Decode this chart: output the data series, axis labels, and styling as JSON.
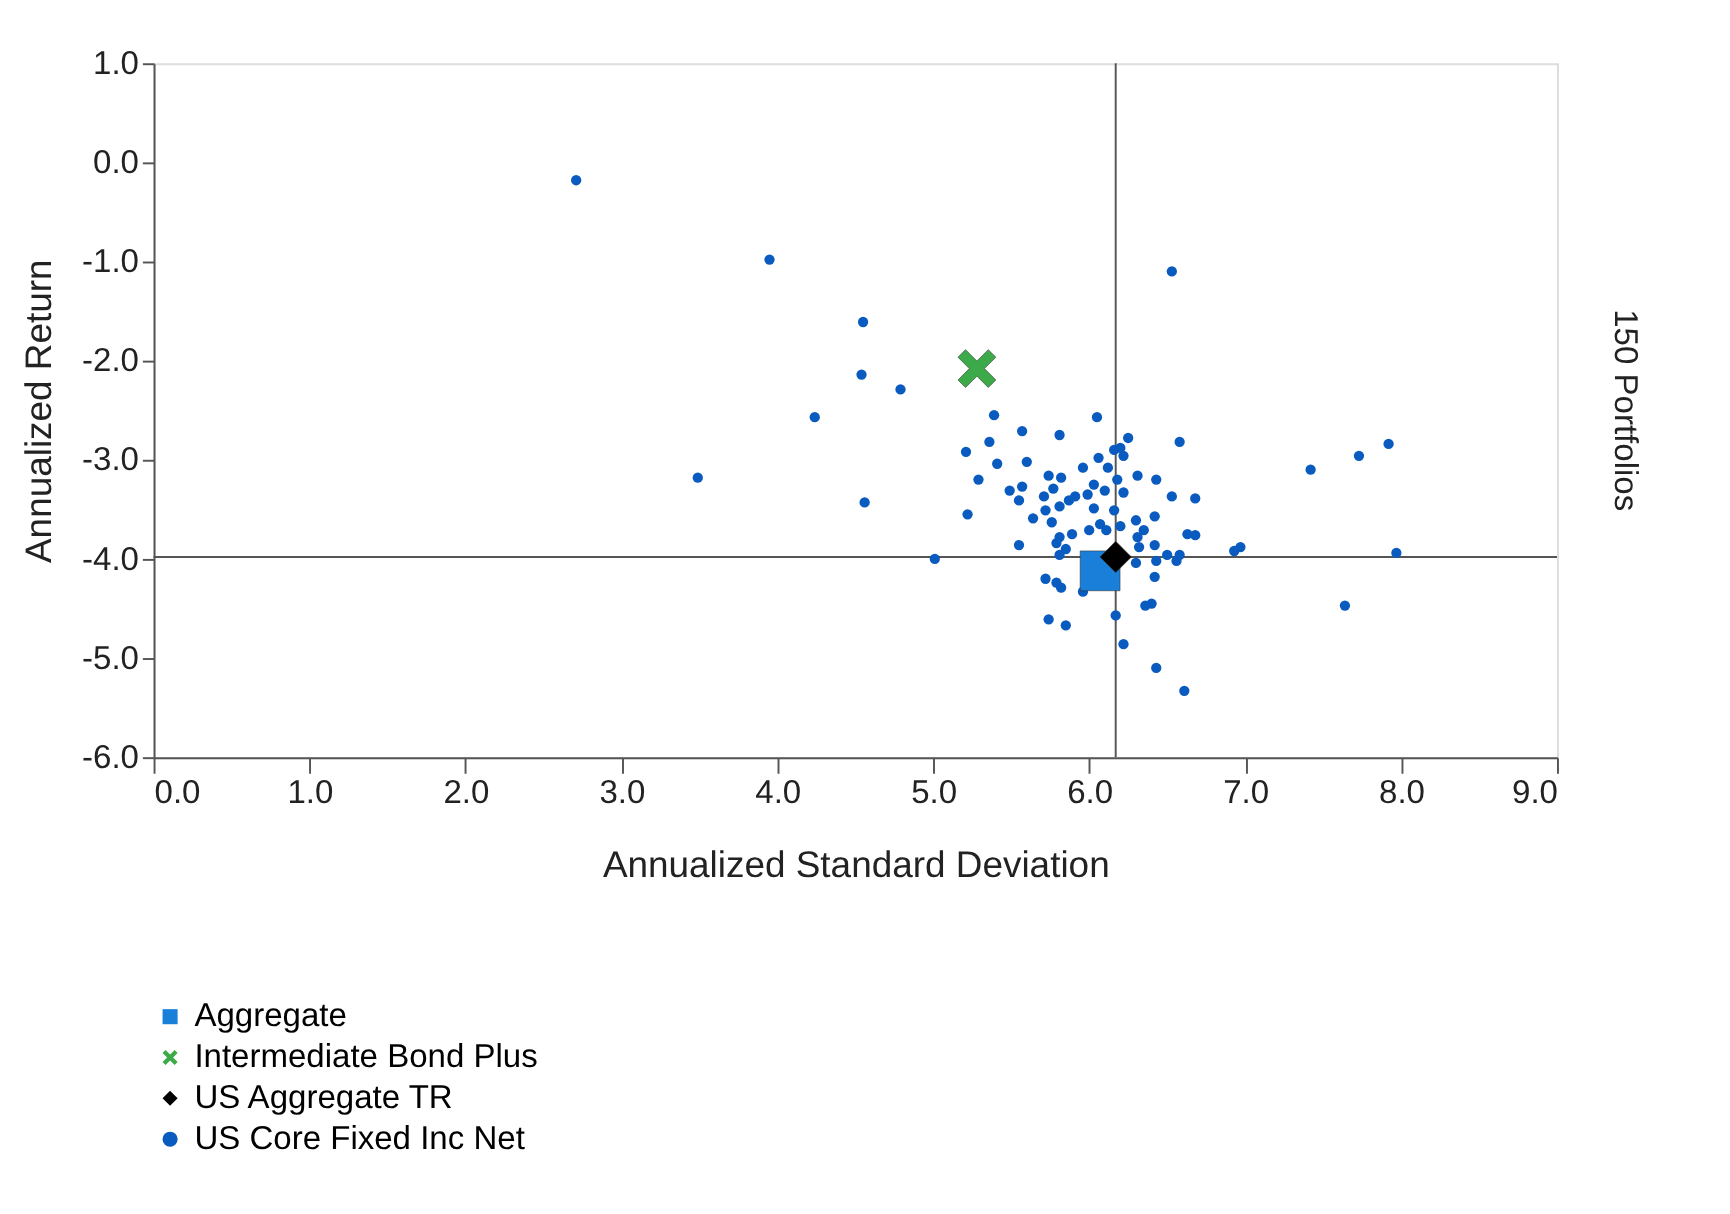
{
  "chart_data": {
    "type": "scatter",
    "xlabel": "Annualized Standard Deviation",
    "ylabel": "Annualized Return",
    "annotations": [
      "150 Portfolios"
    ],
    "xlim": [
      0,
      9
    ],
    "ylim": [
      -6,
      1
    ],
    "xticks": [
      {
        "value": 0,
        "label": "0.0"
      },
      {
        "value": 1,
        "label": "1.0"
      },
      {
        "value": 2,
        "label": "2.0"
      },
      {
        "value": 3,
        "label": "3.0"
      },
      {
        "value": 4,
        "label": "4.0"
      },
      {
        "value": 5,
        "label": "5.0"
      },
      {
        "value": 6,
        "label": "6.0"
      },
      {
        "value": 7,
        "label": "7.0"
      },
      {
        "value": 8,
        "label": "8.0"
      },
      {
        "value": 9,
        "label": "9.0"
      }
    ],
    "yticks": [
      {
        "value": -6,
        "label": "-6.0"
      },
      {
        "value": -5,
        "label": "-5.0"
      },
      {
        "value": -4,
        "label": "-4.0"
      },
      {
        "value": -3,
        "label": "-3.0"
      },
      {
        "value": -2,
        "label": "-2.0"
      },
      {
        "value": -1,
        "label": "-1.0"
      },
      {
        "value": 0,
        "label": "0.0"
      },
      {
        "value": 1,
        "label": "1.0"
      }
    ],
    "grid": false,
    "legend": "bottom",
    "ref_lines": [
      {
        "axis": "x",
        "value": 6.17,
        "color": "#555555"
      },
      {
        "axis": "y",
        "value": -3.98,
        "color": "#555555"
      }
    ],
    "series": [
      {
        "name": "Aggregate",
        "color": "#1a7fd9",
        "marker": "square",
        "x": [
          6.07
        ],
        "values": [
          -4.12
        ]
      },
      {
        "name": "Intermediate Bond Plus",
        "color": "#3daa4a",
        "marker": "cross",
        "x": [
          5.28
        ],
        "values": [
          -2.08
        ]
      },
      {
        "name": "US Aggregate TR",
        "color": "#000000",
        "marker": "diamond",
        "x": [
          6.17
        ],
        "values": [
          -3.98
        ]
      },
      {
        "name": "US Core Fixed Inc Net",
        "color": "#0a5bbf",
        "marker": "circle",
        "x": [
          2.71,
          3.95,
          4.55,
          4.54,
          4.79,
          4.24,
          3.49,
          4.56,
          5.01,
          5.39,
          5.57,
          5.36,
          5.21,
          5.41,
          5.29,
          5.49,
          5.22,
          5.55,
          6.05,
          5.81,
          5.6,
          5.57,
          5.55,
          5.74,
          5.82,
          5.71,
          5.77,
          5.96,
          6.06,
          6.12,
          6.25,
          6.2,
          6.22,
          6.16,
          6.31,
          6.43,
          6.58,
          6.53,
          6.68,
          6.18,
          6.22,
          6.03,
          6.1,
          5.91,
          5.99,
          5.87,
          5.81,
          5.72,
          5.64,
          5.76,
          6.03,
          6.16,
          6.07,
          6.0,
          5.89,
          5.81,
          5.85,
          5.81,
          5.79,
          6.11,
          6.2,
          6.3,
          6.35,
          6.42,
          6.31,
          6.42,
          6.32,
          6.43,
          6.5,
          6.56,
          6.58,
          6.63,
          6.68,
          6.93,
          6.97,
          6.42,
          6.3,
          5.72,
          5.79,
          5.82,
          5.96,
          6.36,
          6.4,
          6.17,
          5.74,
          5.85,
          6.22,
          6.43,
          6.61,
          6.53,
          7.42,
          7.73,
          7.92,
          7.97,
          7.64
        ],
        "values": [
          -0.18,
          -0.98,
          -1.61,
          -2.14,
          -2.29,
          -2.57,
          -3.18,
          -3.43,
          -4.0,
          -2.55,
          -2.71,
          -2.82,
          -2.92,
          -3.04,
          -3.2,
          -3.31,
          -3.55,
          -3.86,
          -2.57,
          -2.75,
          -3.02,
          -3.27,
          -3.41,
          -3.16,
          -3.18,
          -3.37,
          -3.29,
          -3.08,
          -2.98,
          -3.08,
          -2.78,
          -2.88,
          -2.96,
          -2.9,
          -3.16,
          -3.2,
          -2.82,
          -3.37,
          -3.39,
          -3.2,
          -3.33,
          -3.25,
          -3.31,
          -3.37,
          -3.35,
          -3.41,
          -3.47,
          -3.51,
          -3.59,
          -3.63,
          -3.49,
          -3.51,
          -3.65,
          -3.71,
          -3.75,
          -3.78,
          -3.9,
          -3.96,
          -3.84,
          -3.71,
          -3.67,
          -3.61,
          -3.71,
          -3.57,
          -3.78,
          -3.86,
          -3.88,
          -4.02,
          -3.96,
          -4.02,
          -3.96,
          -3.75,
          -3.76,
          -3.92,
          -3.88,
          -4.18,
          -4.04,
          -4.2,
          -4.24,
          -4.29,
          -4.33,
          -4.47,
          -4.45,
          -4.57,
          -4.61,
          -4.67,
          -4.86,
          -5.1,
          -5.33,
          -1.1,
          -3.1,
          -2.96,
          -2.84,
          -3.94,
          -4.47
        ]
      }
    ]
  }
}
